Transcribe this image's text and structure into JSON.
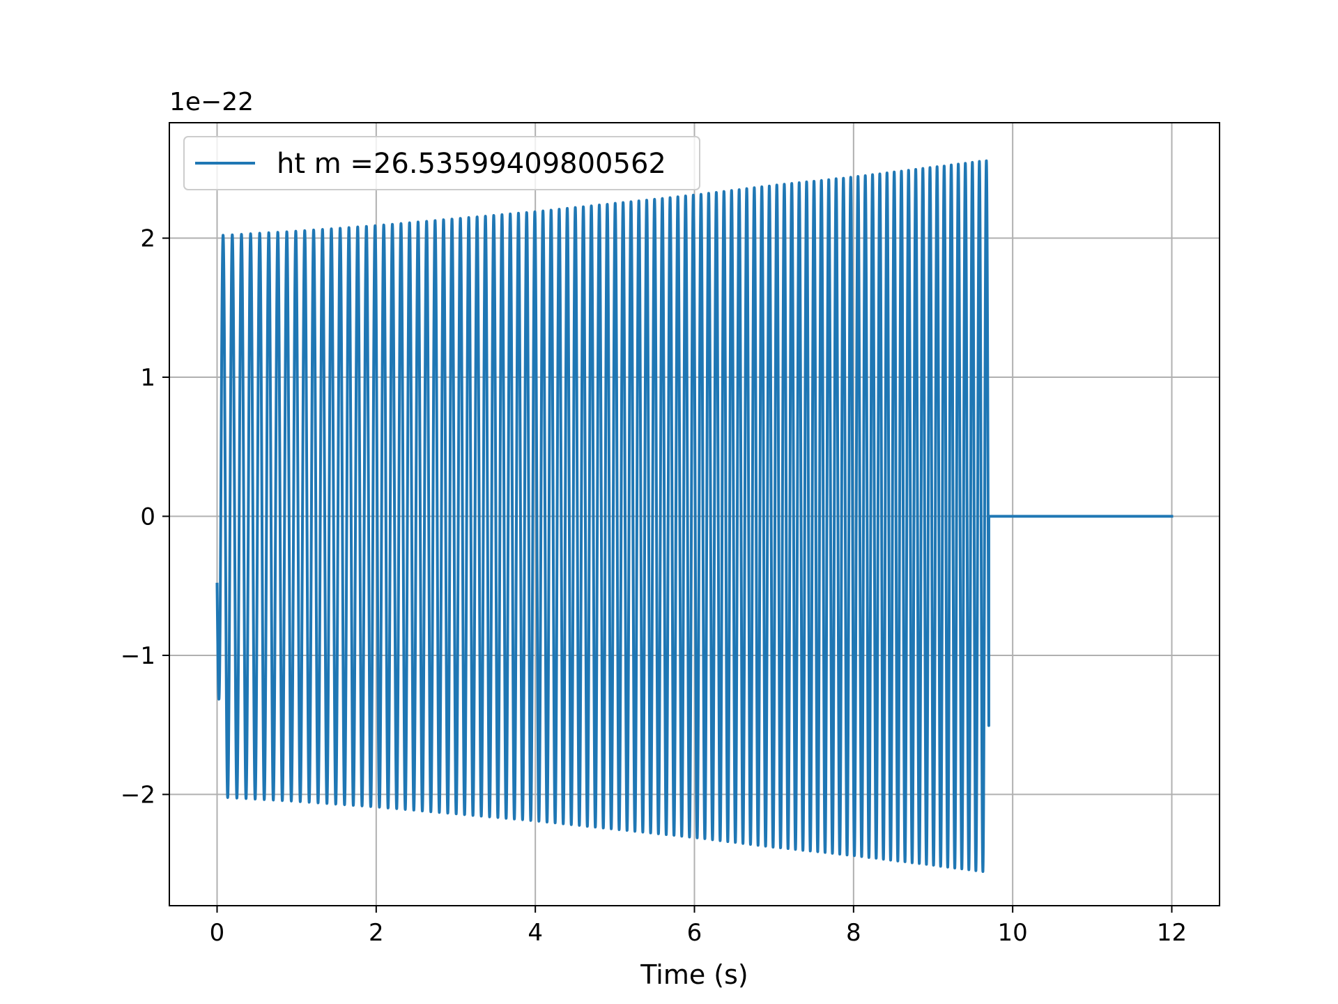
{
  "chart_data": {
    "type": "line",
    "title": "",
    "xlabel": "Time (s)",
    "ylabel": "",
    "y_offset_label": "1e−22",
    "xlim": [
      -0.6,
      12.6
    ],
    "ylim": [
      -2.8,
      2.83
    ],
    "x_ticks": [
      0,
      2,
      4,
      6,
      8,
      10,
      12
    ],
    "x_tick_labels": [
      "0",
      "2",
      "4",
      "6",
      "8",
      "10",
      "12"
    ],
    "y_ticks": [
      -2,
      -1,
      0,
      1,
      2
    ],
    "y_tick_labels": [
      "−2",
      "−1",
      "0",
      "1",
      "2"
    ],
    "grid": true,
    "legend_position": "upper left",
    "series": [
      {
        "name": "ht m =26.53599409800562",
        "color": "#1f77b4",
        "description_points": {
          "x": [
            0,
            0.05,
            1,
            2,
            3,
            4,
            5,
            6,
            7,
            8,
            9,
            9.7,
            9.72,
            12
          ],
          "envelope": [
            0.83,
            2.02,
            2.05,
            2.09,
            2.14,
            2.19,
            2.25,
            2.31,
            2.38,
            2.44,
            2.51,
            2.56,
            0,
            0
          ]
        },
        "cycles": 97,
        "signal_end": 9.7,
        "x_end": 12
      }
    ]
  }
}
